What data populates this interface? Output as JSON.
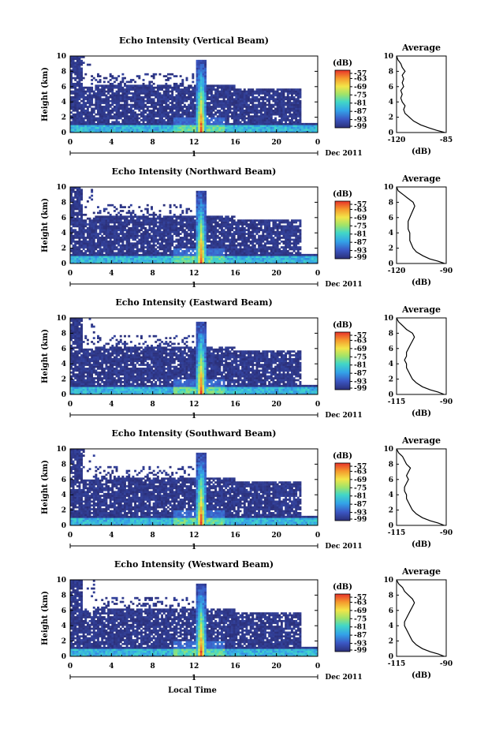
{
  "figure": {
    "xlabel": "Local Time",
    "date_label": "Dec 2011",
    "day_tick": "1",
    "colorbar_unit": "(dB)",
    "avg_title": "Average"
  },
  "chart_data": [
    {
      "type": "heatmap",
      "title": "Echo Intensity (Vertical Beam)",
      "ylabel": "Height (km)",
      "xticks": [
        "0",
        "4",
        "8",
        "12",
        "16",
        "20",
        "0"
      ],
      "yticks": [
        "0",
        "2",
        "4",
        "6",
        "8",
        "10"
      ],
      "xlim": [
        0,
        24
      ],
      "ylim": [
        0,
        10
      ],
      "colorbar_ticks": [
        "-57",
        "-63",
        "-69",
        "-75",
        "-81",
        "-87",
        "-93",
        "-99"
      ],
      "colorbar_range": [
        -99,
        -57
      ],
      "average": {
        "title": "Average",
        "xlabel": "(dB)",
        "xticks": [
          "-120",
          "-85"
        ],
        "xlim": [
          -120,
          -85
        ],
        "height_km": [
          0,
          0.3,
          0.6,
          1,
          1.5,
          2,
          2.5,
          3,
          3.5,
          4,
          4.5,
          5,
          5.5,
          6,
          6.5,
          7,
          7.5,
          8,
          8.5,
          9,
          9.5,
          10
        ],
        "db": [
          -86,
          -92,
          -97,
          -103,
          -108,
          -111,
          -114,
          -115,
          -114,
          -116,
          -117,
          -116,
          -117,
          -115,
          -116,
          -115,
          -116,
          -114,
          -116,
          -117,
          -119,
          -120
        ]
      }
    },
    {
      "type": "heatmap",
      "title": "Echo Intensity (Northward Beam)",
      "ylabel": "Height (km)",
      "xticks": [
        "0",
        "4",
        "8",
        "12",
        "16",
        "20",
        "0"
      ],
      "yticks": [
        "0",
        "2",
        "4",
        "6",
        "8",
        "10"
      ],
      "xlim": [
        0,
        24
      ],
      "ylim": [
        0,
        10
      ],
      "colorbar_ticks": [
        "-57",
        "-63",
        "-69",
        "-75",
        "-81",
        "-87",
        "-93",
        "-99"
      ],
      "colorbar_range": [
        -99,
        -57
      ],
      "average": {
        "title": "Average",
        "xlabel": "(dB)",
        "xticks": [
          "-120",
          "-90"
        ],
        "xlim": [
          -120,
          -90
        ],
        "height_km": [
          0,
          0.3,
          0.6,
          1,
          1.5,
          2,
          2.5,
          3,
          3.5,
          4,
          4.5,
          5,
          5.5,
          6,
          6.5,
          7,
          7.5,
          8,
          8.5,
          9,
          9.5,
          10
        ],
        "db": [
          -91,
          -95,
          -100,
          -104,
          -108,
          -110,
          -111,
          -112,
          -112,
          -112,
          -113,
          -113,
          -113,
          -112,
          -111,
          -110,
          -109,
          -110,
          -113,
          -116,
          -119,
          -120
        ]
      }
    },
    {
      "type": "heatmap",
      "title": "Echo Intensity (Eastward Beam)",
      "ylabel": "Height (km)",
      "xticks": [
        "0",
        "4",
        "8",
        "12",
        "16",
        "20",
        "0"
      ],
      "yticks": [
        "0",
        "2",
        "4",
        "6",
        "8",
        "10"
      ],
      "xlim": [
        0,
        24
      ],
      "ylim": [
        0,
        10
      ],
      "colorbar_ticks": [
        "-57",
        "-63",
        "-69",
        "-75",
        "-81",
        "-87",
        "-93",
        "-99"
      ],
      "colorbar_range": [
        -99,
        -57
      ],
      "average": {
        "title": "Average",
        "xlabel": "(dB)",
        "xticks": [
          "-115",
          "-90"
        ],
        "xlim": [
          -115,
          -90
        ],
        "height_km": [
          0,
          0.3,
          0.6,
          1,
          1.5,
          2,
          2.5,
          3,
          3.5,
          4,
          4.5,
          5,
          5.5,
          6,
          6.5,
          7,
          7.5,
          8,
          8.5,
          9,
          9.5,
          10
        ],
        "db": [
          -91,
          -94,
          -98,
          -102,
          -105,
          -107,
          -108,
          -109,
          -110,
          -110,
          -111,
          -110,
          -110,
          -109,
          -108,
          -107,
          -106,
          -107,
          -110,
          -112,
          -114,
          -115
        ]
      }
    },
    {
      "type": "heatmap",
      "title": "Echo Intensity (Southward Beam)",
      "ylabel": "Height (km)",
      "xticks": [
        "0",
        "4",
        "8",
        "12",
        "16",
        "20",
        "0"
      ],
      "yticks": [
        "0",
        "2",
        "4",
        "6",
        "8",
        "10"
      ],
      "xlim": [
        0,
        24
      ],
      "ylim": [
        0,
        10
      ],
      "colorbar_ticks": [
        "-57",
        "-63",
        "-69",
        "-75",
        "-81",
        "-87",
        "-93",
        "-99"
      ],
      "colorbar_range": [
        -99,
        -57
      ],
      "average": {
        "title": "Average",
        "xlabel": "(dB)",
        "xticks": [
          "-115",
          "-90"
        ],
        "xlim": [
          -115,
          -90
        ],
        "height_km": [
          0,
          0.3,
          0.6,
          1,
          1.5,
          2,
          2.5,
          3,
          3.5,
          4,
          4.5,
          5,
          5.5,
          6,
          6.5,
          7,
          7.5,
          8,
          8.5,
          9,
          9.5,
          10
        ],
        "db": [
          -91,
          -94,
          -98,
          -102,
          -105,
          -107,
          -108,
          -109,
          -110,
          -110,
          -111,
          -111,
          -110,
          -109,
          -110,
          -109,
          -108,
          -110,
          -111,
          -112,
          -114,
          -115
        ]
      }
    },
    {
      "type": "heatmap",
      "title": "Echo Intensity (Westward Beam)",
      "ylabel": "Height (km)",
      "xticks": [
        "0",
        "4",
        "8",
        "12",
        "16",
        "20",
        "0"
      ],
      "yticks": [
        "0",
        "2",
        "4",
        "6",
        "8",
        "10"
      ],
      "xlim": [
        0,
        24
      ],
      "ylim": [
        0,
        10
      ],
      "colorbar_ticks": [
        "-57",
        "-63",
        "-69",
        "-75",
        "-81",
        "-87",
        "-93",
        "-99"
      ],
      "colorbar_range": [
        -99,
        -57
      ],
      "average": {
        "title": "Average",
        "xlabel": "(dB)",
        "xticks": [
          "-115",
          "-90"
        ],
        "xlim": [
          -115,
          -90
        ],
        "height_km": [
          0,
          0.3,
          0.6,
          1,
          1.5,
          2,
          2.5,
          3,
          3.5,
          4,
          4.5,
          5,
          5.5,
          6,
          6.5,
          7,
          7.5,
          8,
          8.5,
          9,
          9.5,
          10
        ],
        "db": [
          -91,
          -94,
          -98,
          -102,
          -105,
          -107,
          -108,
          -109,
          -110,
          -111,
          -111,
          -110,
          -109,
          -108,
          -107,
          -106,
          -107,
          -109,
          -111,
          -112,
          -114,
          -115
        ]
      }
    }
  ]
}
